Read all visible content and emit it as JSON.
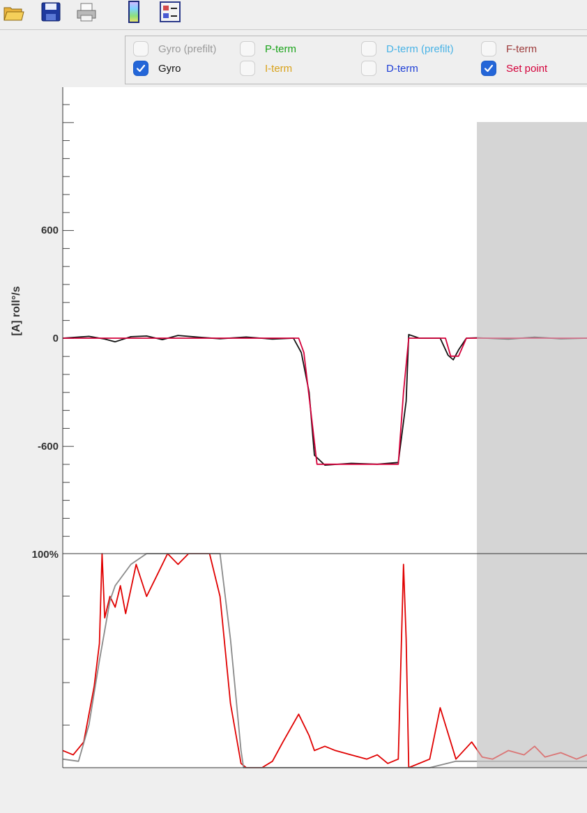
{
  "toolbar": {
    "buttons": [
      {
        "name": "open-folder-icon"
      },
      {
        "name": "save-icon"
      },
      {
        "name": "print-icon"
      },
      {
        "name": "color-bar-icon"
      },
      {
        "name": "legend-toggle-icon"
      }
    ]
  },
  "legend": {
    "items": [
      {
        "id": "gyro-prefilt",
        "label": "Gyro (prefilt)",
        "checked": false,
        "color": "#9a9a9a"
      },
      {
        "id": "gyro",
        "label": "Gyro",
        "checked": true,
        "color": "#111111"
      },
      {
        "id": "p-term",
        "label": "P-term",
        "checked": false,
        "color": "#1aa31a"
      },
      {
        "id": "i-term",
        "label": "I-term",
        "checked": false,
        "color": "#d9a21b"
      },
      {
        "id": "d-term-prefilt",
        "label": "D-term (prefilt)",
        "checked": false,
        "color": "#49b3e6"
      },
      {
        "id": "d-term",
        "label": "D-term",
        "checked": false,
        "color": "#1f3fd6"
      },
      {
        "id": "f-term",
        "label": "F-term",
        "checked": false,
        "color": "#9c3a3a"
      },
      {
        "id": "set-point",
        "label": "Set point",
        "checked": true,
        "color": "#d4003a"
      }
    ]
  },
  "chart_data": [
    {
      "type": "line",
      "title": "",
      "ylabel": "[A] roll°/s",
      "ylim": [
        -1200,
        1200
      ],
      "yticks": [
        600,
        0,
        -600
      ],
      "ytick_labels": [
        "600",
        "0",
        "-600"
      ],
      "xlim": [
        0,
        1
      ],
      "shaded_region": {
        "x_start": 0.79,
        "x_end": 1.0,
        "color": "#d5d5d5"
      },
      "series": [
        {
          "name": "Gyro",
          "color": "#111111",
          "x": [
            0,
            0.05,
            0.08,
            0.1,
            0.13,
            0.16,
            0.19,
            0.22,
            0.26,
            0.3,
            0.35,
            0.4,
            0.44,
            0.455,
            0.47,
            0.48,
            0.5,
            0.55,
            0.6,
            0.64,
            0.655,
            0.66,
            0.68,
            0.72,
            0.735,
            0.745,
            0.755,
            0.77,
            0.79,
            0.85,
            0.9,
            0.95,
            1.0
          ],
          "y": [
            0,
            10,
            -5,
            -20,
            8,
            12,
            -8,
            15,
            5,
            -3,
            6,
            -5,
            0,
            -80,
            -300,
            -650,
            -705,
            -695,
            -700,
            -690,
            -350,
            20,
            0,
            0,
            -95,
            -120,
            -65,
            0,
            2,
            -5,
            5,
            -3,
            0
          ]
        },
        {
          "name": "Set point",
          "color": "#d4003a",
          "x": [
            0,
            0.3,
            0.45,
            0.46,
            0.475,
            0.485,
            0.5,
            0.55,
            0.6,
            0.64,
            0.65,
            0.66,
            0.7,
            0.73,
            0.74,
            0.755,
            0.77,
            0.79,
            1.0
          ],
          "y": [
            0,
            0,
            0,
            -80,
            -450,
            -700,
            -700,
            -700,
            -700,
            -700,
            -300,
            0,
            0,
            0,
            -100,
            -100,
            0,
            0,
            0
          ]
        }
      ]
    },
    {
      "type": "line",
      "title": "",
      "ylabel": "",
      "ylim": [
        0,
        100
      ],
      "ytick_labels": [
        "100%"
      ],
      "xlim": [
        0,
        1
      ],
      "shaded_region": {
        "x_start": 0.79,
        "x_end": 1.0,
        "color": "#d5d5d5"
      },
      "series": [
        {
          "name": "red-trace",
          "color": "#e00000",
          "x": [
            0,
            0.02,
            0.04,
            0.06,
            0.07,
            0.075,
            0.08,
            0.09,
            0.1,
            0.11,
            0.12,
            0.14,
            0.16,
            0.18,
            0.2,
            0.22,
            0.24,
            0.26,
            0.28,
            0.3,
            0.32,
            0.34,
            0.35,
            0.37,
            0.38,
            0.4,
            0.42,
            0.45,
            0.47,
            0.48,
            0.5,
            0.52,
            0.55,
            0.58,
            0.6,
            0.62,
            0.64,
            0.65,
            0.655,
            0.66,
            0.7,
            0.72,
            0.75,
            0.78,
            0.8,
            0.82,
            0.85,
            0.88,
            0.9,
            0.92,
            0.95,
            0.98,
            1.0
          ],
          "y": [
            8,
            6,
            12,
            38,
            58,
            100,
            70,
            80,
            75,
            85,
            72,
            95,
            80,
            90,
            100,
            95,
            100,
            100,
            100,
            80,
            30,
            2,
            0,
            0,
            0,
            3,
            12,
            25,
            15,
            8,
            10,
            8,
            6,
            4,
            6,
            2,
            4,
            95,
            60,
            0,
            4,
            28,
            4,
            12,
            5,
            4,
            8,
            6,
            10,
            5,
            7,
            4,
            6
          ]
        },
        {
          "name": "gray-trace",
          "color": "#8a8a8a",
          "x": [
            0,
            0.03,
            0.05,
            0.07,
            0.09,
            0.1,
            0.13,
            0.16,
            0.2,
            0.24,
            0.28,
            0.3,
            0.32,
            0.34,
            0.345,
            0.36,
            0.4,
            0.5,
            0.6,
            0.7,
            0.75,
            0.79,
            0.8,
            0.9,
            1.0
          ],
          "y": [
            4,
            3,
            20,
            50,
            78,
            85,
            95,
            100,
            100,
            100,
            100,
            100,
            60,
            8,
            0,
            0,
            0,
            0,
            0,
            0,
            3,
            3,
            3,
            3,
            3
          ]
        }
      ]
    }
  ]
}
